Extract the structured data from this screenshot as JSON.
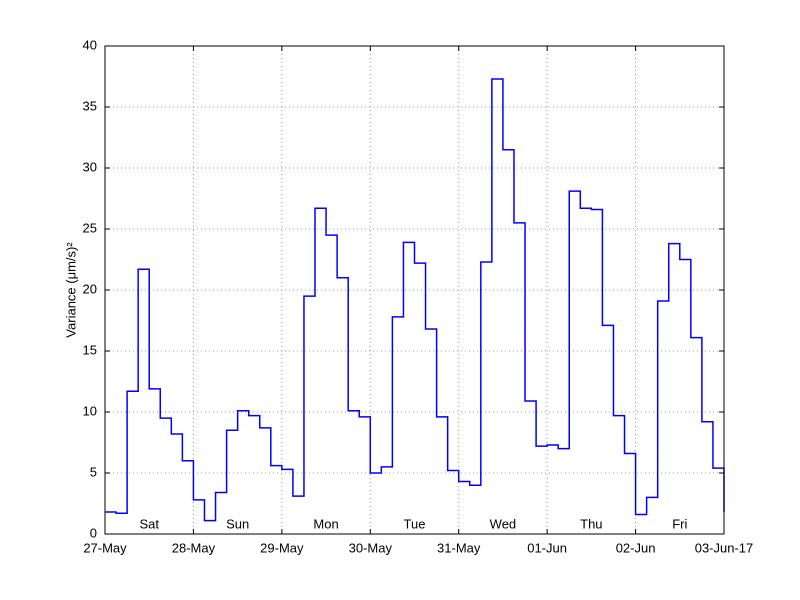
{
  "chart_data": {
    "type": "stairs",
    "ylabel": "Variance (μm/s)²",
    "x": [
      0,
      0.125,
      0.25,
      0.375,
      0.5,
      0.625,
      0.75,
      0.875,
      1,
      1.125,
      1.25,
      1.375,
      1.5,
      1.625,
      1.75,
      1.875,
      2,
      2.125,
      2.25,
      2.375,
      2.5,
      2.625,
      2.75,
      2.875,
      3,
      3.125,
      3.25,
      3.375,
      3.5,
      3.625,
      3.75,
      3.875,
      4,
      4.125,
      4.25,
      4.375,
      4.5,
      4.625,
      4.75,
      4.875,
      5,
      5.125,
      5.25,
      5.375,
      5.5,
      5.625,
      5.75,
      5.875,
      6,
      6.125,
      6.25,
      6.375,
      6.5,
      6.625,
      6.75,
      6.875,
      7
    ],
    "series": [
      {
        "color": "#0000ff",
        "values": [
          1.8,
          1.7,
          11.7,
          21.7,
          11.9,
          9.5,
          8.2,
          6.0,
          2.8,
          1.1,
          3.4,
          8.5,
          10.1,
          9.7,
          8.7,
          5.6,
          5.3,
          3.1,
          19.5,
          26.7,
          24.5,
          21.0,
          10.1,
          9.6,
          5.0,
          5.5,
          17.8,
          23.9,
          22.2,
          16.8,
          9.6,
          5.2,
          4.3,
          4.0,
          22.3,
          37.3,
          31.5,
          25.5,
          10.9,
          7.2,
          7.3,
          7.0,
          28.1,
          26.7,
          26.6,
          17.1,
          9.7,
          6.6,
          1.6,
          3.0,
          19.1,
          23.8,
          22.5,
          16.1,
          9.2,
          5.4,
          1.8
        ]
      }
    ],
    "day_labels": [
      "Sat",
      "Sun",
      "Mon",
      "Tue",
      "Wed",
      "Thu",
      "Fri"
    ],
    "xlim": [
      0,
      7
    ],
    "xticks": [
      {
        "value": 0,
        "label": "27-May"
      },
      {
        "value": 1,
        "label": "28-May"
      },
      {
        "value": 2,
        "label": "29-May"
      },
      {
        "value": 3,
        "label": "30-May"
      },
      {
        "value": 4,
        "label": "31-May"
      },
      {
        "value": 5,
        "label": "01-Jun"
      },
      {
        "value": 6,
        "label": "02-Jun"
      },
      {
        "value": 7,
        "label": "03-Jun-17"
      }
    ],
    "ylim": [
      0,
      40
    ],
    "yticks": [
      0,
      5,
      10,
      15,
      20,
      25,
      30,
      35,
      40
    ],
    "grid": true
  }
}
